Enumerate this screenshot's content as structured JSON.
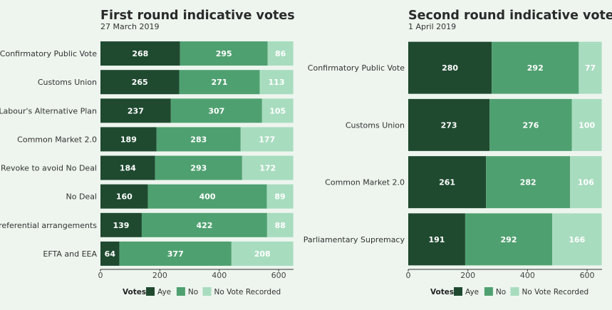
{
  "colors": {
    "aye": "#1f4a30",
    "no": "#4fa070",
    "no_vote": "#a8dcbf",
    "background": "#edf5ee",
    "axis": "#333333"
  },
  "chart_data": [
    {
      "type": "bar",
      "orientation": "horizontal",
      "stacked": true,
      "title": "First round indicative votes",
      "subtitle": "27 March 2019",
      "categories": [
        "Confirmatory Public Vote",
        "Customs Union",
        "Labour's Alternative Plan",
        "Common Market 2.0",
        "Revoke to avoid No Deal",
        "No Deal",
        "Preferential arrangements",
        "EFTA and EEA"
      ],
      "series": [
        {
          "name": "Aye",
          "values": [
            268,
            265,
            237,
            189,
            184,
            160,
            139,
            64
          ]
        },
        {
          "name": "No",
          "values": [
            295,
            271,
            307,
            283,
            293,
            400,
            422,
            377
          ]
        },
        {
          "name": "No Vote Recorded",
          "values": [
            86,
            113,
            105,
            177,
            172,
            89,
            88,
            208
          ]
        }
      ],
      "xticks": [
        "0",
        "200",
        "400",
        "600"
      ],
      "xlim": [
        0,
        650
      ],
      "legend_title": "Votes",
      "legend_position": "bottom"
    },
    {
      "type": "bar",
      "orientation": "horizontal",
      "stacked": true,
      "title": "Second round indicative votes",
      "subtitle": "1 April 2019",
      "categories": [
        "Confirmatory Public Vote",
        "Customs Union",
        "Common Market 2.0",
        "Parliamentary Supremacy"
      ],
      "series": [
        {
          "name": "Aye",
          "values": [
            280,
            273,
            261,
            191
          ]
        },
        {
          "name": "No",
          "values": [
            292,
            276,
            282,
            292
          ]
        },
        {
          "name": "No Vote Recorded",
          "values": [
            77,
            100,
            106,
            166
          ]
        }
      ],
      "xticks": [
        "0",
        "200",
        "400",
        "600"
      ],
      "xlim": [
        0,
        650
      ],
      "legend_title": "Votes",
      "legend_position": "bottom"
    }
  ]
}
